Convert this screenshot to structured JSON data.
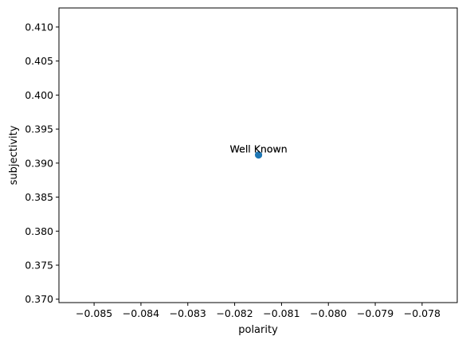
{
  "chart_data": {
    "type": "scatter",
    "xlabel": "polarity",
    "ylabel": "subjectivity",
    "xlim": [
      -0.08575,
      -0.07725
    ],
    "ylim": [
      0.3695,
      0.4128
    ],
    "xticks": [
      -0.085,
      -0.084,
      -0.083,
      -0.082,
      -0.081,
      -0.08,
      -0.079,
      -0.078
    ],
    "xtick_labels": [
      "−0.085",
      "−0.084",
      "−0.083",
      "−0.082",
      "−0.081",
      "−0.080",
      "−0.079",
      "−0.078"
    ],
    "yticks": [
      0.37,
      0.375,
      0.38,
      0.385,
      0.39,
      0.395,
      0.4,
      0.405,
      0.41
    ],
    "ytick_labels": [
      "0.370",
      "0.375",
      "0.380",
      "0.385",
      "0.390",
      "0.395",
      "0.400",
      "0.405",
      "0.410"
    ],
    "grid": false,
    "points": [
      {
        "x": -0.08149,
        "y": 0.3912,
        "label": "Well Known"
      },
      {
        "x": -0.08149,
        "y": 0.3912,
        "label": "Well Known"
      }
    ],
    "marker_color": "#1f77b4"
  }
}
